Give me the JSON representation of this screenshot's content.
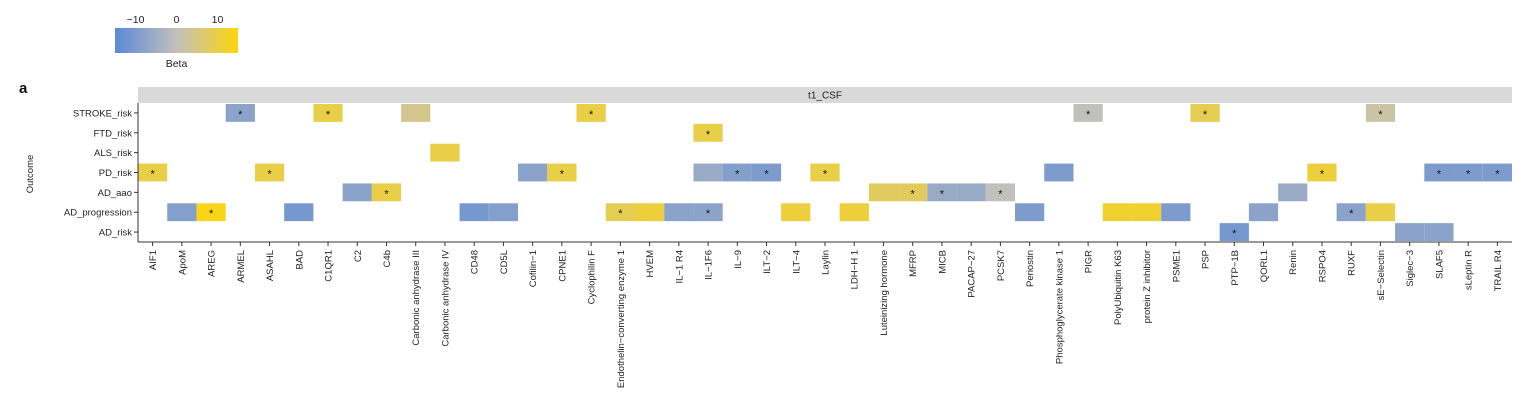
{
  "panel_label": "a",
  "legend": {
    "title": "Beta",
    "ticks": [
      "−10",
      "0",
      "10"
    ],
    "tick_values": [
      -10,
      0,
      10
    ],
    "range": [
      -15,
      15
    ],
    "colors": {
      "low": "#5b89d6",
      "mid": "#c2c0bc",
      "high": "#fdd50c"
    }
  },
  "chart_data": {
    "type": "heatmap",
    "facet_title": "t1_CSF",
    "ylabel": "Outcome",
    "xlabel": "",
    "rows": [
      "STROKE_risk",
      "FTD_risk",
      "ALS_risk",
      "PD_risk",
      "AD_aao",
      "AD_progression",
      "AD_risk"
    ],
    "columns": [
      "AIF1",
      "ApoM",
      "AREG",
      "ARMEL",
      "ASAHL",
      "BAD",
      "C1QR1",
      "C2",
      "C4b",
      "Carbonic anhydrase III",
      "Carbonic anhydrase IV",
      "CD48",
      "CD5L",
      "Cofilin−1",
      "CPNE1",
      "Cyclophilin F",
      "Endothelin−converting enzyme 1",
      "HVEM",
      "IL−1 R4",
      "IL−1F6",
      "IL−9",
      "ILT−2",
      "ILT−4",
      "Laylin",
      "LDH−H 1",
      "Luteinizing hormone",
      "MFRP",
      "MICB",
      "PACAP−27",
      "PCSK7",
      "Periostin",
      "Phosphoglycerate kinase 1",
      "PIGR",
      "PolyUbiquitin K63",
      "protein Z inhibitor",
      "PSME1",
      "PSP",
      "PTP−1B",
      "QORL1",
      "Renin",
      "RSPO4",
      "RUXF",
      "sE−Selectin",
      "Siglec−3",
      "SLAF5",
      "sLeptin R",
      "TRAIL R4"
    ],
    "cells": [
      {
        "row": "STROKE_risk",
        "col": "ARMEL",
        "beta": -8,
        "sig": true
      },
      {
        "row": "STROKE_risk",
        "col": "C1QR1",
        "beta": 10,
        "sig": true
      },
      {
        "row": "STROKE_risk",
        "col": "Carbonic anhydrase III",
        "beta": 4,
        "sig": false
      },
      {
        "row": "STROKE_risk",
        "col": "Cyclophilin F",
        "beta": 10,
        "sig": true
      },
      {
        "row": "STROKE_risk",
        "col": "PIGR",
        "beta": 0,
        "sig": true
      },
      {
        "row": "STROKE_risk",
        "col": "PSP",
        "beta": 9,
        "sig": true
      },
      {
        "row": "STROKE_risk",
        "col": "sE−Selectin",
        "beta": 2,
        "sig": true
      },
      {
        "row": "FTD_risk",
        "col": "IL−1F6",
        "beta": 10,
        "sig": true
      },
      {
        "row": "ALS_risk",
        "col": "Carbonic anhydrase IV",
        "beta": 10,
        "sig": false
      },
      {
        "row": "PD_risk",
        "col": "AIF1",
        "beta": 10,
        "sig": true
      },
      {
        "row": "PD_risk",
        "col": "ASAHL",
        "beta": 10,
        "sig": true
      },
      {
        "row": "PD_risk",
        "col": "Cofilin−1",
        "beta": -8,
        "sig": false
      },
      {
        "row": "PD_risk",
        "col": "CPNE1",
        "beta": 10,
        "sig": true
      },
      {
        "row": "PD_risk",
        "col": "IL−1F6",
        "beta": -6,
        "sig": false
      },
      {
        "row": "PD_risk",
        "col": "IL−9",
        "beta": -9,
        "sig": true
      },
      {
        "row": "PD_risk",
        "col": "ILT−2",
        "beta": -10,
        "sig": true
      },
      {
        "row": "PD_risk",
        "col": "Laylin",
        "beta": 10,
        "sig": true
      },
      {
        "row": "PD_risk",
        "col": "Phosphoglycerate kinase 1",
        "beta": -10,
        "sig": false
      },
      {
        "row": "PD_risk",
        "col": "RSPO4",
        "beta": 11,
        "sig": true
      },
      {
        "row": "PD_risk",
        "col": "SLAF5",
        "beta": -10,
        "sig": true
      },
      {
        "row": "PD_risk",
        "col": "sLeptin R",
        "beta": -10,
        "sig": true
      },
      {
        "row": "PD_risk",
        "col": "TRAIL R4",
        "beta": -10,
        "sig": true
      },
      {
        "row": "AD_aao",
        "col": "C2",
        "beta": -8,
        "sig": false
      },
      {
        "row": "AD_aao",
        "col": "C4b",
        "beta": 10,
        "sig": true
      },
      {
        "row": "AD_aao",
        "col": "Luteinizing hormone",
        "beta": 8,
        "sig": false
      },
      {
        "row": "AD_aao",
        "col": "MFRP",
        "beta": 8,
        "sig": true
      },
      {
        "row": "AD_aao",
        "col": "MICB",
        "beta": -6,
        "sig": true
      },
      {
        "row": "AD_aao",
        "col": "PACAP−27",
        "beta": -6,
        "sig": false
      },
      {
        "row": "AD_aao",
        "col": "PCSK7",
        "beta": 0,
        "sig": true
      },
      {
        "row": "AD_aao",
        "col": "Renin",
        "beta": -6,
        "sig": false
      },
      {
        "row": "AD_progression",
        "col": "ApoM",
        "beta": -9,
        "sig": false
      },
      {
        "row": "AD_progression",
        "col": "AREG",
        "beta": 14,
        "sig": true
      },
      {
        "row": "AD_progression",
        "col": "BAD",
        "beta": -11,
        "sig": false
      },
      {
        "row": "AD_progression",
        "col": "CD48",
        "beta": -11,
        "sig": false
      },
      {
        "row": "AD_progression",
        "col": "CD5L",
        "beta": -9,
        "sig": false
      },
      {
        "row": "AD_progression",
        "col": "Endothelin−converting enzyme 1",
        "beta": 9,
        "sig": true
      },
      {
        "row": "AD_progression",
        "col": "HVEM",
        "beta": 11,
        "sig": false
      },
      {
        "row": "AD_progression",
        "col": "IL−1 R4",
        "beta": -8,
        "sig": false
      },
      {
        "row": "AD_progression",
        "col": "IL−1F6",
        "beta": -8,
        "sig": true
      },
      {
        "row": "AD_progression",
        "col": "ILT−4",
        "beta": 11,
        "sig": false
      },
      {
        "row": "AD_progression",
        "col": "LDH−H 1",
        "beta": 11,
        "sig": false
      },
      {
        "row": "AD_progression",
        "col": "Periostin",
        "beta": -10,
        "sig": false
      },
      {
        "row": "AD_progression",
        "col": "PolyUbiquitin K63",
        "beta": 12,
        "sig": false
      },
      {
        "row": "AD_progression",
        "col": "protein Z inhibitor",
        "beta": 12,
        "sig": false
      },
      {
        "row": "AD_progression",
        "col": "PSME1",
        "beta": -10,
        "sig": false
      },
      {
        "row": "AD_progression",
        "col": "QORL1",
        "beta": -8,
        "sig": false
      },
      {
        "row": "AD_progression",
        "col": "RUXF",
        "beta": -8,
        "sig": true
      },
      {
        "row": "AD_progression",
        "col": "sE−Selectin",
        "beta": 10,
        "sig": false
      },
      {
        "row": "AD_risk",
        "col": "PTP−1B",
        "beta": -11,
        "sig": true
      },
      {
        "row": "AD_risk",
        "col": "Siglec−3",
        "beta": -8,
        "sig": false
      },
      {
        "row": "AD_risk",
        "col": "SLAF5",
        "beta": -8,
        "sig": false
      }
    ],
    "significance_marker": "*"
  }
}
